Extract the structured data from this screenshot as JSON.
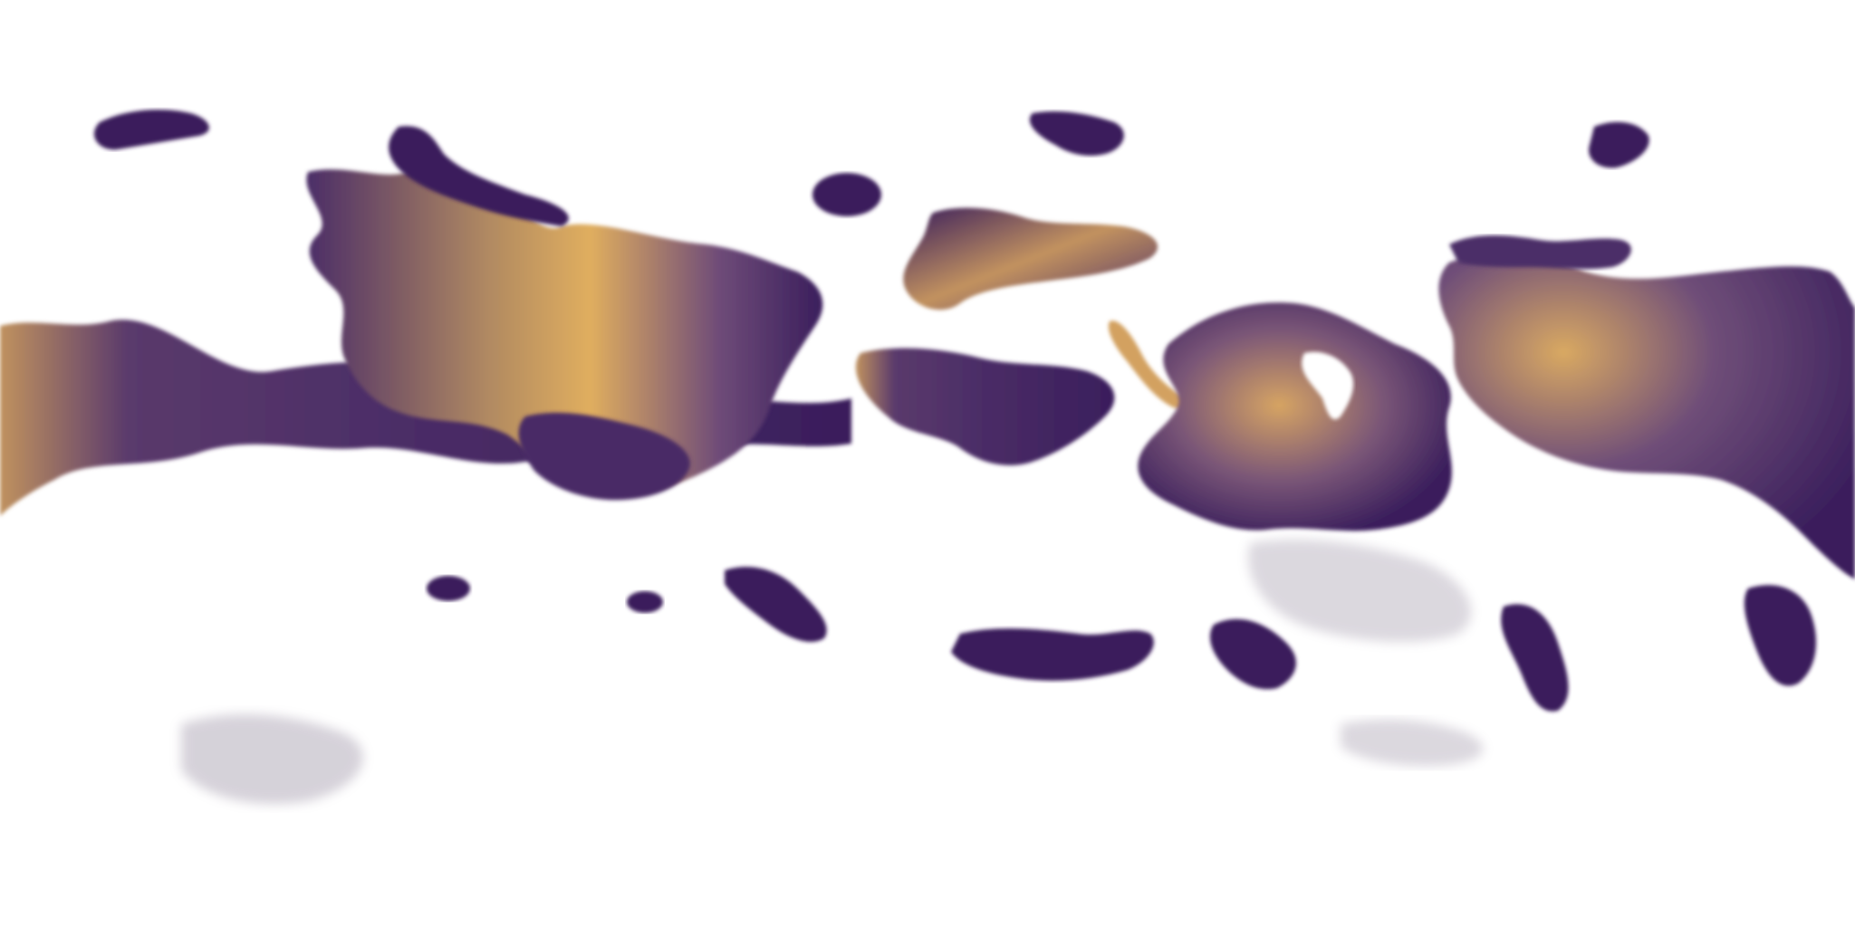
{
  "map": {
    "projection": "equirectangular",
    "background_color": "#ffffff",
    "field_colormap": {
      "low": "#3a1e5c",
      "mid": "#6b4a78",
      "high": "#e0ae5f",
      "clear": "#ffffff"
    },
    "visible_text": []
  }
}
